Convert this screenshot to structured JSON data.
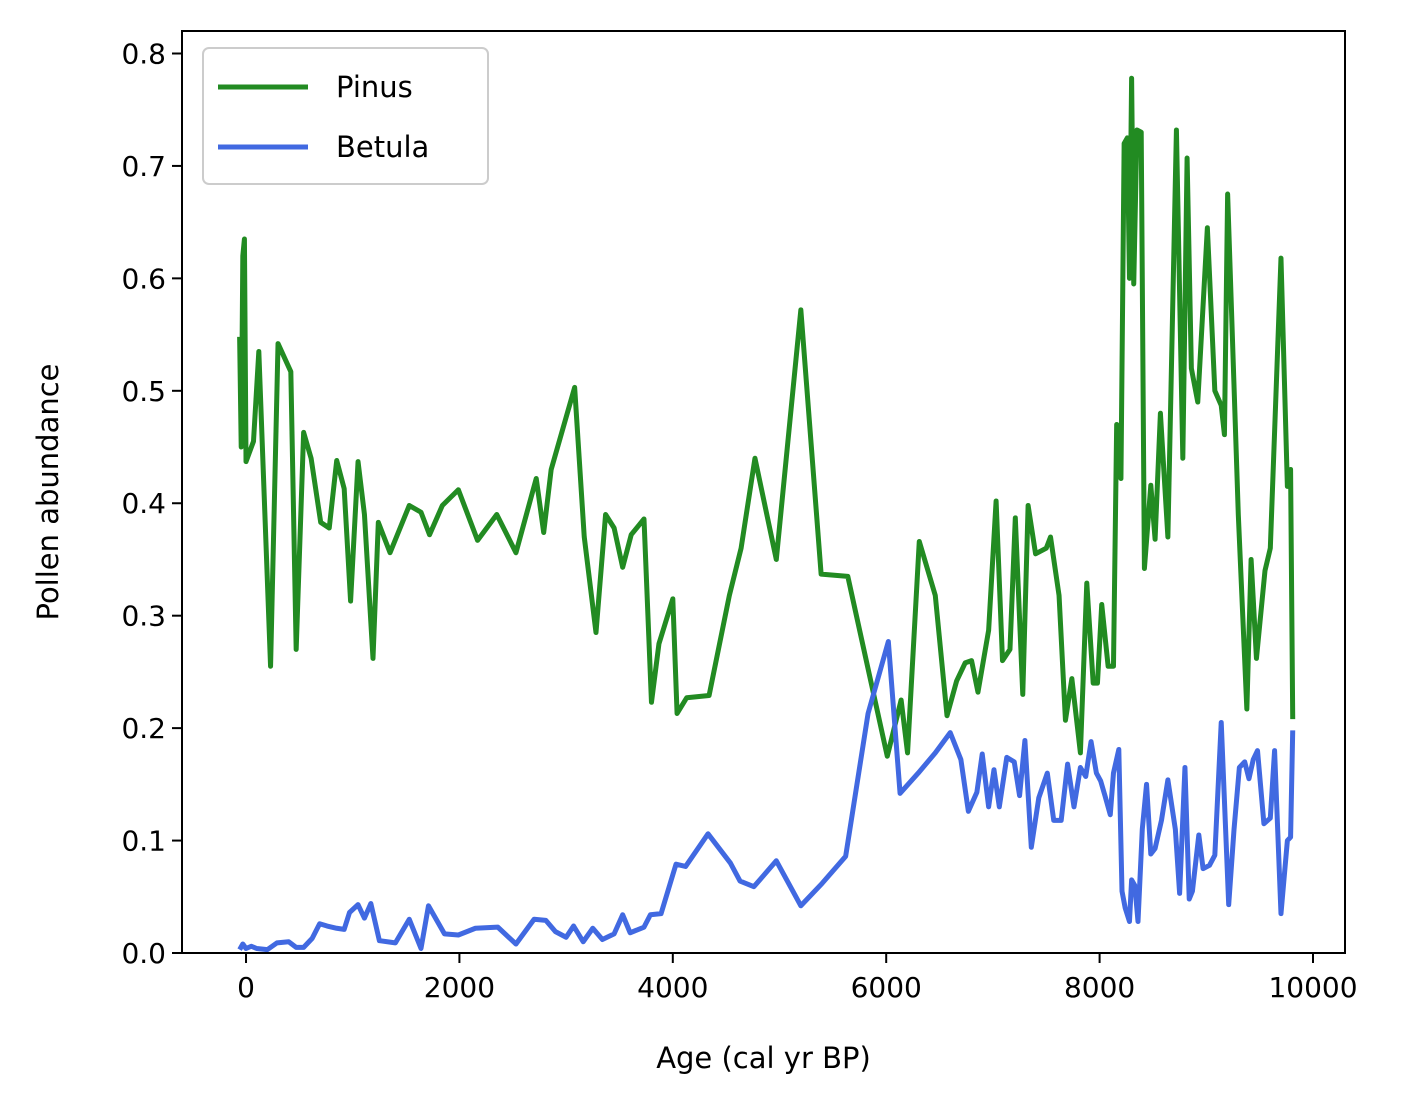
{
  "chart_data": {
    "type": "line",
    "title": "",
    "xlabel": "Age (cal yr BP)",
    "ylabel": "Pollen abundance",
    "xlim": [
      -600,
      10300
    ],
    "ylim": [
      0.0,
      0.82
    ],
    "xticks": [
      0,
      2000,
      4000,
      6000,
      8000,
      10000
    ],
    "xtick_labels": [
      "0",
      "2000",
      "4000",
      "6000",
      "8000",
      "10000"
    ],
    "yticks": [
      0.0,
      0.1,
      0.2,
      0.3,
      0.4,
      0.5,
      0.6,
      0.7,
      0.8
    ],
    "ytick_labels": [
      "0.0",
      "0.1",
      "0.2",
      "0.3",
      "0.4",
      "0.5",
      "0.6",
      "0.7",
      "0.8"
    ],
    "grid": false,
    "legend": "upper-left",
    "series": [
      {
        "name": "Pinus",
        "color": "#228b22",
        "points": [
          [
            -60,
            0.548
          ],
          [
            -45,
            0.45
          ],
          [
            -30,
            0.62
          ],
          [
            -15,
            0.635
          ],
          [
            0,
            0.437
          ],
          [
            70,
            0.455
          ],
          [
            120,
            0.535
          ],
          [
            230,
            0.255
          ],
          [
            300,
            0.542
          ],
          [
            420,
            0.517
          ],
          [
            470,
            0.27
          ],
          [
            540,
            0.463
          ],
          [
            610,
            0.44
          ],
          [
            700,
            0.383
          ],
          [
            780,
            0.378
          ],
          [
            850,
            0.438
          ],
          [
            920,
            0.413
          ],
          [
            980,
            0.313
          ],
          [
            1050,
            0.437
          ],
          [
            1110,
            0.39
          ],
          [
            1190,
            0.262
          ],
          [
            1240,
            0.383
          ],
          [
            1350,
            0.356
          ],
          [
            1530,
            0.398
          ],
          [
            1640,
            0.392
          ],
          [
            1720,
            0.372
          ],
          [
            1840,
            0.398
          ],
          [
            1990,
            0.412
          ],
          [
            2170,
            0.367
          ],
          [
            2350,
            0.39
          ],
          [
            2530,
            0.356
          ],
          [
            2720,
            0.422
          ],
          [
            2790,
            0.374
          ],
          [
            2860,
            0.43
          ],
          [
            3080,
            0.503
          ],
          [
            3170,
            0.37
          ],
          [
            3280,
            0.285
          ],
          [
            3370,
            0.39
          ],
          [
            3450,
            0.378
          ],
          [
            3530,
            0.343
          ],
          [
            3610,
            0.372
          ],
          [
            3730,
            0.386
          ],
          [
            3800,
            0.223
          ],
          [
            3870,
            0.275
          ],
          [
            4000,
            0.315
          ],
          [
            4040,
            0.213
          ],
          [
            4130,
            0.227
          ],
          [
            4340,
            0.229
          ],
          [
            4530,
            0.318
          ],
          [
            4640,
            0.36
          ],
          [
            4770,
            0.44
          ],
          [
            4970,
            0.35
          ],
          [
            5200,
            0.572
          ],
          [
            5390,
            0.337
          ],
          [
            5640,
            0.335
          ],
          [
            6010,
            0.175
          ],
          [
            6140,
            0.225
          ],
          [
            6200,
            0.178
          ],
          [
            6310,
            0.366
          ],
          [
            6460,
            0.318
          ],
          [
            6570,
            0.211
          ],
          [
            6660,
            0.242
          ],
          [
            6740,
            0.258
          ],
          [
            6800,
            0.26
          ],
          [
            6860,
            0.232
          ],
          [
            6960,
            0.287
          ],
          [
            7030,
            0.402
          ],
          [
            7090,
            0.26
          ],
          [
            7160,
            0.27
          ],
          [
            7210,
            0.387
          ],
          [
            7280,
            0.23
          ],
          [
            7330,
            0.398
          ],
          [
            7400,
            0.355
          ],
          [
            7500,
            0.36
          ],
          [
            7540,
            0.37
          ],
          [
            7620,
            0.318
          ],
          [
            7680,
            0.207
          ],
          [
            7740,
            0.244
          ],
          [
            7820,
            0.178
          ],
          [
            7880,
            0.329
          ],
          [
            7940,
            0.24
          ],
          [
            7980,
            0.24
          ],
          [
            8020,
            0.31
          ],
          [
            8080,
            0.255
          ],
          [
            8130,
            0.255
          ],
          [
            8160,
            0.47
          ],
          [
            8200,
            0.422
          ],
          [
            8230,
            0.72
          ],
          [
            8260,
            0.725
          ],
          [
            8280,
            0.6
          ],
          [
            8300,
            0.778
          ],
          [
            8320,
            0.595
          ],
          [
            8350,
            0.732
          ],
          [
            8390,
            0.73
          ],
          [
            8420,
            0.342
          ],
          [
            8480,
            0.416
          ],
          [
            8520,
            0.368
          ],
          [
            8570,
            0.48
          ],
          [
            8640,
            0.37
          ],
          [
            8720,
            0.732
          ],
          [
            8780,
            0.44
          ],
          [
            8820,
            0.707
          ],
          [
            8860,
            0.52
          ],
          [
            8920,
            0.49
          ],
          [
            9010,
            0.645
          ],
          [
            9080,
            0.5
          ],
          [
            9140,
            0.487
          ],
          [
            9170,
            0.461
          ],
          [
            9200,
            0.675
          ],
          [
            9300,
            0.39
          ],
          [
            9380,
            0.217
          ],
          [
            9420,
            0.35
          ],
          [
            9470,
            0.262
          ],
          [
            9550,
            0.34
          ],
          [
            9600,
            0.36
          ],
          [
            9700,
            0.618
          ],
          [
            9760,
            0.415
          ],
          [
            9790,
            0.43
          ],
          [
            9810,
            0.208
          ]
        ]
      },
      {
        "name": "Betula",
        "color": "#4169e1",
        "points": [
          [
            -60,
            0.003
          ],
          [
            -30,
            0.008
          ],
          [
            0,
            0.004
          ],
          [
            50,
            0.006
          ],
          [
            100,
            0.004
          ],
          [
            200,
            0.003
          ],
          [
            290,
            0.009
          ],
          [
            400,
            0.01
          ],
          [
            470,
            0.005
          ],
          [
            540,
            0.005
          ],
          [
            620,
            0.013
          ],
          [
            690,
            0.026
          ],
          [
            760,
            0.024
          ],
          [
            850,
            0.022
          ],
          [
            920,
            0.021
          ],
          [
            970,
            0.036
          ],
          [
            1050,
            0.043
          ],
          [
            1110,
            0.031
          ],
          [
            1170,
            0.044
          ],
          [
            1250,
            0.011
          ],
          [
            1400,
            0.009
          ],
          [
            1530,
            0.03
          ],
          [
            1640,
            0.004
          ],
          [
            1710,
            0.042
          ],
          [
            1860,
            0.017
          ],
          [
            1990,
            0.016
          ],
          [
            2150,
            0.022
          ],
          [
            2360,
            0.023
          ],
          [
            2530,
            0.008
          ],
          [
            2700,
            0.03
          ],
          [
            2810,
            0.029
          ],
          [
            2900,
            0.019
          ],
          [
            3000,
            0.014
          ],
          [
            3070,
            0.024
          ],
          [
            3160,
            0.01
          ],
          [
            3250,
            0.022
          ],
          [
            3340,
            0.012
          ],
          [
            3450,
            0.017
          ],
          [
            3530,
            0.034
          ],
          [
            3600,
            0.018
          ],
          [
            3730,
            0.023
          ],
          [
            3790,
            0.034
          ],
          [
            3890,
            0.035
          ],
          [
            4030,
            0.079
          ],
          [
            4120,
            0.077
          ],
          [
            4330,
            0.106
          ],
          [
            4540,
            0.08
          ],
          [
            4630,
            0.064
          ],
          [
            4760,
            0.059
          ],
          [
            4970,
            0.082
          ],
          [
            5200,
            0.042
          ],
          [
            5400,
            0.062
          ],
          [
            5620,
            0.086
          ],
          [
            5830,
            0.213
          ],
          [
            6020,
            0.277
          ],
          [
            6130,
            0.142
          ],
          [
            6300,
            0.16
          ],
          [
            6460,
            0.178
          ],
          [
            6600,
            0.196
          ],
          [
            6700,
            0.172
          ],
          [
            6770,
            0.126
          ],
          [
            6850,
            0.143
          ],
          [
            6900,
            0.177
          ],
          [
            6960,
            0.13
          ],
          [
            7010,
            0.163
          ],
          [
            7060,
            0.13
          ],
          [
            7130,
            0.174
          ],
          [
            7200,
            0.17
          ],
          [
            7250,
            0.14
          ],
          [
            7300,
            0.189
          ],
          [
            7360,
            0.094
          ],
          [
            7430,
            0.138
          ],
          [
            7510,
            0.16
          ],
          [
            7570,
            0.118
          ],
          [
            7640,
            0.118
          ],
          [
            7700,
            0.168
          ],
          [
            7760,
            0.13
          ],
          [
            7820,
            0.165
          ],
          [
            7870,
            0.157
          ],
          [
            7920,
            0.188
          ],
          [
            7970,
            0.16
          ],
          [
            8010,
            0.153
          ],
          [
            8050,
            0.14
          ],
          [
            8100,
            0.123
          ],
          [
            8130,
            0.16
          ],
          [
            8180,
            0.181
          ],
          [
            8210,
            0.055
          ],
          [
            8240,
            0.04
          ],
          [
            8280,
            0.028
          ],
          [
            8300,
            0.065
          ],
          [
            8330,
            0.06
          ],
          [
            8360,
            0.028
          ],
          [
            8400,
            0.11
          ],
          [
            8440,
            0.15
          ],
          [
            8480,
            0.088
          ],
          [
            8520,
            0.093
          ],
          [
            8580,
            0.118
          ],
          [
            8640,
            0.154
          ],
          [
            8710,
            0.11
          ],
          [
            8750,
            0.053
          ],
          [
            8800,
            0.165
          ],
          [
            8840,
            0.048
          ],
          [
            8870,
            0.055
          ],
          [
            8930,
            0.105
          ],
          [
            8970,
            0.075
          ],
          [
            9030,
            0.078
          ],
          [
            9080,
            0.087
          ],
          [
            9140,
            0.205
          ],
          [
            9210,
            0.043
          ],
          [
            9260,
            0.11
          ],
          [
            9310,
            0.165
          ],
          [
            9360,
            0.17
          ],
          [
            9400,
            0.155
          ],
          [
            9440,
            0.172
          ],
          [
            9480,
            0.18
          ],
          [
            9540,
            0.115
          ],
          [
            9600,
            0.12
          ],
          [
            9640,
            0.18
          ],
          [
            9700,
            0.035
          ],
          [
            9760,
            0.1
          ],
          [
            9790,
            0.103
          ],
          [
            9810,
            0.198
          ]
        ]
      }
    ]
  }
}
